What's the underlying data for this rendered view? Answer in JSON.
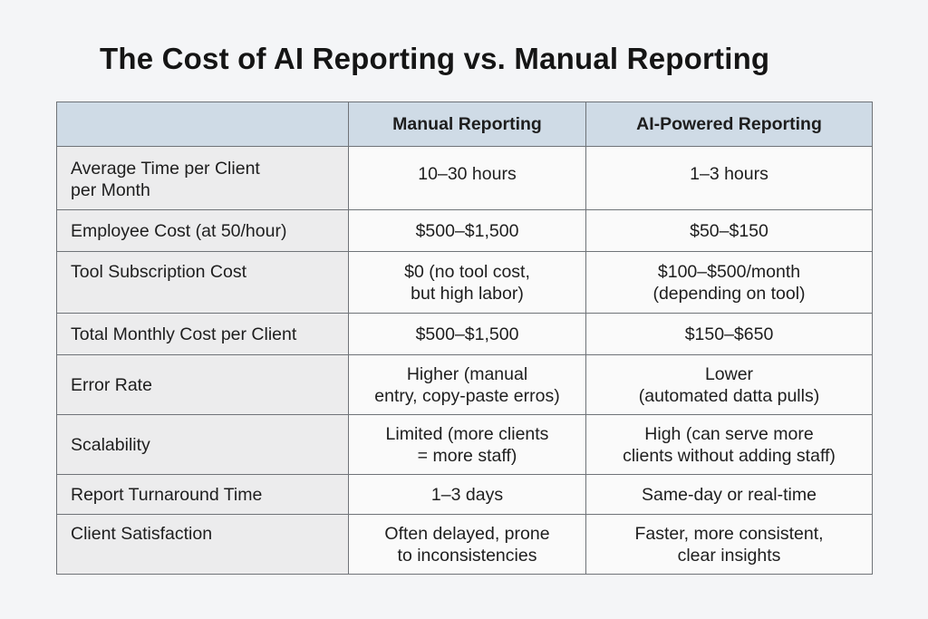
{
  "title": "The Cost of AI Reporting vs. Manual Reporting",
  "table": {
    "headers": [
      "",
      "Manual Reporting",
      "AI-Powered Reporting"
    ],
    "rows": [
      {
        "label": "Average Time per Client\nper Month",
        "manual": "10–30 hours",
        "ai": "1–3 hours"
      },
      {
        "label": "Employee Cost (at 50/hour)",
        "manual": "$500–$1,500",
        "ai": "$50–$150"
      },
      {
        "label": "Tool Subscription Cost",
        "manual": "$0 (no tool cost,\nbut high labor)",
        "ai": "$100–$500/month\n(depending on tool)"
      },
      {
        "label": "Total Monthly Cost per Client",
        "manual": "$500–$1,500",
        "ai": "$150–$650"
      },
      {
        "label": "Error Rate",
        "manual": "Higher (manual\nentry, copy-paste erros)",
        "ai": "Lower\n(automated datta pulls)"
      },
      {
        "label": "Scalability",
        "manual": "Limited (more clients\n= more staff)",
        "ai": "High (can serve more\nclients without adding staff)"
      },
      {
        "label": "Report Turnaround Time",
        "manual": "1–3 days",
        "ai": "Same-day or real-time"
      },
      {
        "label": "Client Satisfaction",
        "manual": "Often delayed, prone\nto inconsistencies",
        "ai": "Faster, more consistent,\nclear insights"
      }
    ]
  }
}
